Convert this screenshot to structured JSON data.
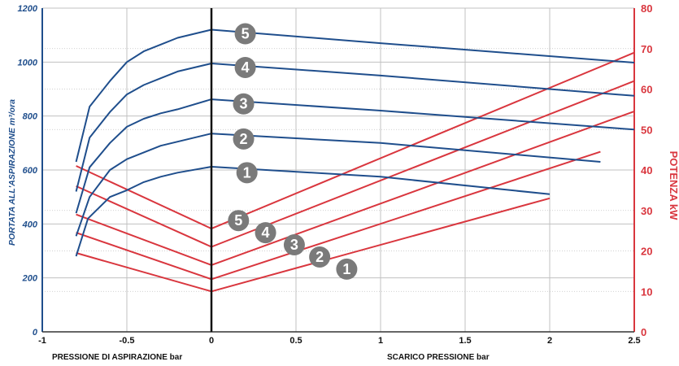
{
  "chart_data": {
    "type": "line",
    "xlabel_left": "PRESSIONE DI ASPIRAZIONE bar",
    "xlabel_right": "SCARICO PRESSIONE bar",
    "ylabel_left": "PORTATA ALL'ASPIRAZIONE m³/ora",
    "ylabel_right": "POTENZA kW",
    "xlim": [
      -1,
      2.5
    ],
    "ylim_left": [
      0,
      1200
    ],
    "ylim_right": [
      0,
      80
    ],
    "x_ticks": [
      "-1",
      "-0.5",
      "0",
      "0.5",
      "1",
      "1.5",
      "2",
      "2.5"
    ],
    "x_tick_values": [
      -1,
      -0.5,
      0,
      0.5,
      1,
      1.5,
      2,
      2.5
    ],
    "y_left_ticks": [
      0,
      200,
      400,
      600,
      800,
      1000,
      1200
    ],
    "y_right_ticks": [
      0,
      10,
      20,
      30,
      40,
      50,
      60,
      70,
      80
    ],
    "grid": true,
    "colors": {
      "flow": "#1f4e8c",
      "power": "#d9363e",
      "badge": "#7a7a7a",
      "grid": "#c0c0c0",
      "divider": "#111111"
    },
    "flow_series": [
      {
        "label": "1",
        "points": [
          [
            -0.8,
            280
          ],
          [
            -0.73,
            420
          ],
          [
            -0.6,
            500
          ],
          [
            -0.5,
            525
          ],
          [
            -0.4,
            555
          ],
          [
            -0.3,
            575
          ],
          [
            -0.2,
            590
          ],
          [
            0,
            612
          ],
          [
            1,
            575
          ],
          [
            2,
            510
          ]
        ]
      },
      {
        "label": "2",
        "points": [
          [
            -0.8,
            355
          ],
          [
            -0.72,
            500
          ],
          [
            -0.6,
            600
          ],
          [
            -0.5,
            640
          ],
          [
            -0.4,
            665
          ],
          [
            -0.3,
            690
          ],
          [
            -0.2,
            705
          ],
          [
            0,
            735
          ],
          [
            1,
            700
          ],
          [
            2.3,
            630
          ]
        ]
      },
      {
        "label": "3",
        "points": [
          [
            -0.8,
            440
          ],
          [
            -0.72,
            610
          ],
          [
            -0.6,
            700
          ],
          [
            -0.5,
            760
          ],
          [
            -0.4,
            790
          ],
          [
            -0.3,
            810
          ],
          [
            -0.2,
            825
          ],
          [
            0,
            862
          ],
          [
            1,
            820
          ],
          [
            2.5,
            750
          ]
        ]
      },
      {
        "label": "4",
        "points": [
          [
            -0.8,
            520
          ],
          [
            -0.72,
            720
          ],
          [
            -0.6,
            815
          ],
          [
            -0.5,
            880
          ],
          [
            -0.4,
            915
          ],
          [
            -0.3,
            940
          ],
          [
            -0.2,
            965
          ],
          [
            0,
            995
          ],
          [
            1,
            950
          ],
          [
            2.5,
            875
          ]
        ]
      },
      {
        "label": "5",
        "points": [
          [
            -0.8,
            630
          ],
          [
            -0.72,
            835
          ],
          [
            -0.6,
            930
          ],
          [
            -0.5,
            1000
          ],
          [
            -0.4,
            1040
          ],
          [
            -0.3,
            1065
          ],
          [
            -0.2,
            1090
          ],
          [
            0,
            1120
          ],
          [
            1,
            1070
          ],
          [
            2.5,
            998
          ]
        ]
      }
    ],
    "power_series": [
      {
        "label": "1",
        "points": [
          [
            -0.8,
            19.5
          ],
          [
            0,
            10
          ],
          [
            2,
            33
          ]
        ]
      },
      {
        "label": "2",
        "points": [
          [
            -0.8,
            24.5
          ],
          [
            0,
            13
          ],
          [
            2.3,
            44.5
          ]
        ]
      },
      {
        "label": "3",
        "points": [
          [
            -0.8,
            29
          ],
          [
            0,
            16.5
          ],
          [
            2.5,
            54.5
          ]
        ]
      },
      {
        "label": "4",
        "points": [
          [
            -0.8,
            36
          ],
          [
            0,
            21
          ],
          [
            2.5,
            62
          ]
        ]
      },
      {
        "label": "5",
        "points": [
          [
            -0.8,
            41
          ],
          [
            0,
            25.5
          ],
          [
            2.5,
            69
          ]
        ]
      }
    ],
    "flow_badges": [
      {
        "label": "1",
        "x": 0.21,
        "y": 590
      },
      {
        "label": "2",
        "x": 0.19,
        "y": 715
      },
      {
        "label": "3",
        "x": 0.19,
        "y": 845
      },
      {
        "label": "4",
        "x": 0.2,
        "y": 980
      },
      {
        "label": "5",
        "x": 0.2,
        "y": 1105
      }
    ],
    "power_badges": [
      {
        "label": "1",
        "x": 0.8,
        "y": 15.5
      },
      {
        "label": "2",
        "x": 0.64,
        "y": 18.5
      },
      {
        "label": "3",
        "x": 0.49,
        "y": 21.5
      },
      {
        "label": "4",
        "x": 0.32,
        "y": 24.5
      },
      {
        "label": "5",
        "x": 0.16,
        "y": 27.5
      }
    ]
  }
}
